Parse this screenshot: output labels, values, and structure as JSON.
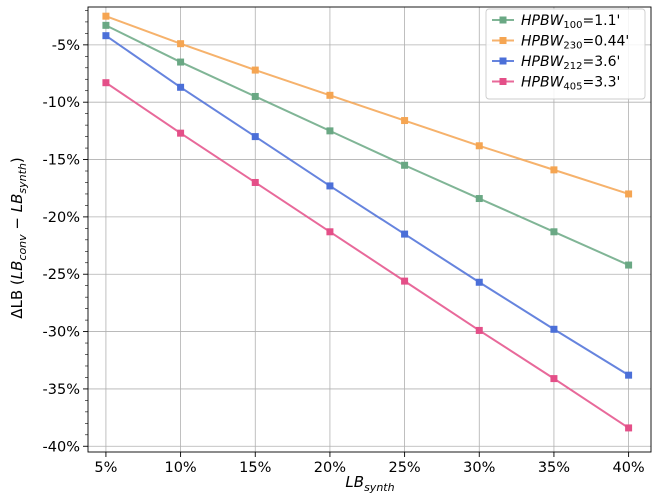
{
  "chart_data": {
    "type": "line",
    "x": [
      5,
      10,
      15,
      20,
      25,
      30,
      35,
      40
    ],
    "x_tick_labels": [
      "5%",
      "10%",
      "15%",
      "20%",
      "25%",
      "30%",
      "35%",
      "40%"
    ],
    "xlim": [
      3.8,
      41.5
    ],
    "ylim": [
      -40.5,
      -1.7
    ],
    "y_ticks": [
      -5,
      -10,
      -15,
      -20,
      -25,
      -30,
      -35,
      -40
    ],
    "y_tick_labels": [
      "-5%",
      "-10%",
      "-15%",
      "-20%",
      "-25%",
      "-30%",
      "-35%",
      "-40%"
    ],
    "xlabel": {
      "main": "LB",
      "sub": "synth"
    },
    "ylabel": {
      "prefix": "ΔLB (",
      "lb1": "LB",
      "sub1": "conv",
      "minus": " − ",
      "lb2": "LB",
      "sub2": "synth",
      "suffix": ")"
    },
    "grid": true,
    "legend_position": "top-right",
    "series": [
      {
        "name_main": "HPBW",
        "name_sub": "100",
        "name_value": "=1.1'",
        "color": "#6aa884",
        "values": [
          -3.3,
          -6.5,
          -9.5,
          -12.5,
          -15.5,
          -18.4,
          -21.3,
          -24.2
        ]
      },
      {
        "name_main": "HPBW",
        "name_sub": "230",
        "name_value": "=0.44'",
        "color": "#f5a552",
        "values": [
          -2.5,
          -4.9,
          -7.2,
          -9.4,
          -11.6,
          -13.8,
          -15.9,
          -18.0
        ]
      },
      {
        "name_main": "HPBW",
        "name_sub": "212",
        "name_value": "=3.6'",
        "color": "#4b6fd8",
        "values": [
          -4.2,
          -8.7,
          -13.0,
          -17.3,
          -21.5,
          -25.7,
          -29.8,
          -33.8
        ]
      },
      {
        "name_main": "HPBW",
        "name_sub": "405",
        "name_value": "=3.3'",
        "color": "#e44f88",
        "values": [
          -8.3,
          -12.7,
          -17.0,
          -21.3,
          -25.6,
          -29.9,
          -34.1,
          -38.4
        ]
      }
    ]
  }
}
